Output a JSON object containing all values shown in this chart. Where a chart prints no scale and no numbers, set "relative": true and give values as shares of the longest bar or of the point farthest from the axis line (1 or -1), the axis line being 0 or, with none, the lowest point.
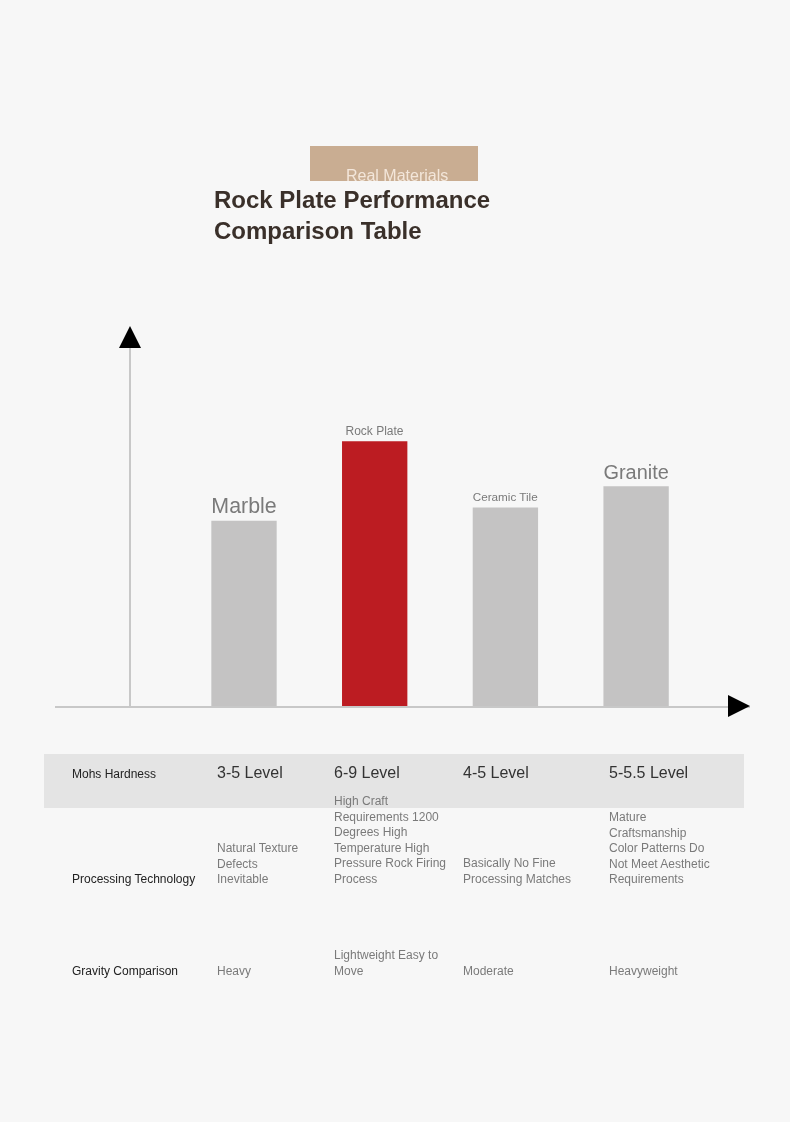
{
  "chart_data": {
    "type": "bar",
    "title": "Rock Plate Performance\nComparison Table",
    "relative": true,
    "tick_labels": false,
    "grid": false,
    "categories": [
      "Marble",
      "Rock Plate",
      "Ceramic Tile",
      "Granite"
    ],
    "values": [
      0.7,
      1,
      0.75,
      0.83
    ],
    "colors": [
      "#c4c3c3",
      "#bc1c22",
      "#c4c3c3",
      "#c4c3c3"
    ],
    "annotations": [
      "Real Materials",
      "Mohs Hardness",
      "3-5 Level",
      "6-9 Level",
      "4-5 Level",
      "5-5.5 Level",
      "Processing Technology",
      "Natural Texture Defects Inevitable",
      "High Craft Requirements 1200 Degrees High Temperature High Pressure Rock Firing Process",
      "Basically No Fine Processing Matches",
      "Mature Craftsmanship Color Patterns Do Not Meet Aesthetic Requirements",
      "Gravity Comparison",
      "Heavy",
      "Lightweight Easy to Move",
      "Moderate",
      "Heavyweight"
    ]
  }
}
